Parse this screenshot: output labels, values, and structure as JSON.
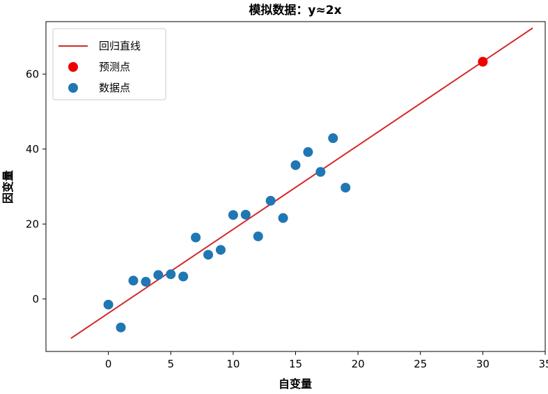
{
  "chart_data": {
    "type": "scatter",
    "title": "模拟数据：y≈2x",
    "xlabel": "自变量",
    "ylabel": "因变量",
    "xlim": [
      -5,
      35
    ],
    "ylim": [
      -14,
      74
    ],
    "xticks": [
      0,
      5,
      10,
      15,
      20,
      25,
      30,
      35
    ],
    "yticks": [
      0,
      20,
      40,
      60
    ],
    "grid": false,
    "legend_position": "top-left",
    "series": [
      {
        "name": "回归直线",
        "kind": "line",
        "color": "#d62728",
        "x": [
          -3,
          34
        ],
        "y": [
          -10.5,
          72.3
        ]
      },
      {
        "name": "预测点",
        "kind": "scatter",
        "color": "#ee0000",
        "x": [
          30
        ],
        "y": [
          63.3
        ]
      },
      {
        "name": "数据点",
        "kind": "scatter",
        "color": "#1f77b4",
        "x": [
          0,
          1,
          2,
          3,
          4,
          5,
          6,
          7,
          8,
          9,
          10,
          11,
          12,
          13,
          14,
          15,
          16,
          17,
          18,
          19
        ],
        "y": [
          -1.5,
          -7.6,
          4.9,
          4.6,
          6.4,
          6.6,
          6.0,
          16.4,
          11.8,
          13.1,
          22.4,
          22.5,
          16.7,
          26.2,
          21.6,
          35.7,
          39.2,
          33.9,
          42.9,
          29.7
        ]
      }
    ]
  }
}
